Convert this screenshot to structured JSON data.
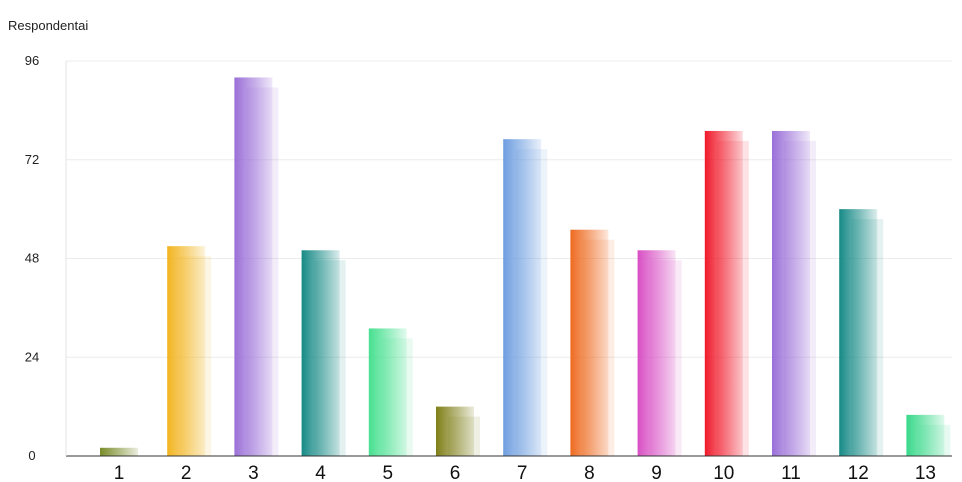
{
  "chart_data": {
    "type": "bar",
    "ylabel": "Respondentai",
    "categories": [
      "1",
      "2",
      "3",
      "4",
      "5",
      "6",
      "7",
      "8",
      "9",
      "10",
      "11",
      "12",
      "13"
    ],
    "values": [
      2,
      51,
      92,
      50,
      31,
      12,
      77,
      55,
      50,
      79,
      79,
      60,
      10
    ],
    "ylim": [
      0,
      96
    ],
    "yticks": [
      0,
      24,
      48,
      72,
      96
    ],
    "grid": true,
    "legend": "none",
    "colors": [
      "#7a8c2a",
      "#f2b41e",
      "#9a6fd8",
      "#168a86",
      "#46e08f",
      "#7f7f18",
      "#6e9ee0",
      "#ee6a1f",
      "#d84fc4",
      "#f0192a",
      "#9a6fd8",
      "#168a86",
      "#38d889"
    ]
  }
}
